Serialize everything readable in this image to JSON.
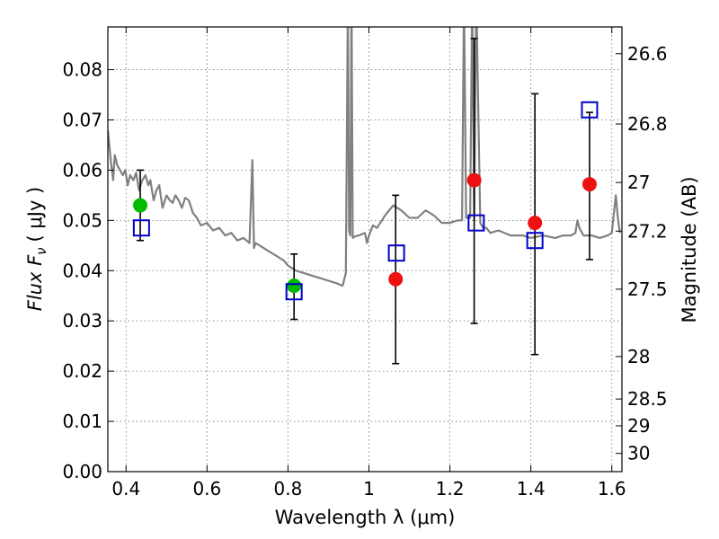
{
  "chart_data": {
    "type": "scatter",
    "xlabel": "Wavelength  λ (μm)",
    "ylabel": "Flux  F",
    "ylabel_sub": "ν",
    "ylabel_unit": "( μJy )",
    "ylabel_right": "Magnitude (AB)",
    "xlim": [
      0.355,
      1.625
    ],
    "ylim": [
      0.0,
      0.0885
    ],
    "grid": true,
    "x_ticks": [
      {
        "value": 0.4,
        "label": "0.4"
      },
      {
        "value": 0.6,
        "label": "0.6"
      },
      {
        "value": 0.8,
        "label": "0.8"
      },
      {
        "value": 1.0,
        "label": "1"
      },
      {
        "value": 1.2,
        "label": "1.2"
      },
      {
        "value": 1.4,
        "label": "1.4"
      },
      {
        "value": 1.6,
        "label": "1.6"
      }
    ],
    "y_ticks": [
      {
        "value": 0.0,
        "label": "0.00"
      },
      {
        "value": 0.01,
        "label": "0.01"
      },
      {
        "value": 0.02,
        "label": "0.02"
      },
      {
        "value": 0.03,
        "label": "0.03"
      },
      {
        "value": 0.04,
        "label": "0.04"
      },
      {
        "value": 0.05,
        "label": "0.05"
      },
      {
        "value": 0.06,
        "label": "0.06"
      },
      {
        "value": 0.07,
        "label": "0.07"
      },
      {
        "value": 0.08,
        "label": "0.08"
      }
    ],
    "right_ticks": [
      {
        "mag": 26.6,
        "label": "26.6"
      },
      {
        "mag": 26.8,
        "label": "26.8"
      },
      {
        "mag": 27.0,
        "label": "27"
      },
      {
        "mag": 27.2,
        "label": "27.2"
      },
      {
        "mag": 27.5,
        "label": "27.5"
      },
      {
        "mag": 28.0,
        "label": "28"
      },
      {
        "mag": 28.5,
        "label": "28.5"
      },
      {
        "mag": 29.0,
        "label": "29"
      },
      {
        "mag": 30.0,
        "label": "30"
      }
    ],
    "series": [
      {
        "kind": "line",
        "color": "#808080",
        "x": [
          0.355,
          0.362,
          0.368,
          0.372,
          0.378,
          0.385,
          0.392,
          0.398,
          0.404,
          0.41,
          0.418,
          0.425,
          0.432,
          0.44,
          0.448,
          0.455,
          0.46,
          0.468,
          0.475,
          0.482,
          0.49,
          0.5,
          0.508,
          0.515,
          0.522,
          0.53,
          0.538,
          0.546,
          0.555,
          0.565,
          0.575,
          0.585,
          0.6,
          0.615,
          0.63,
          0.645,
          0.66,
          0.675,
          0.69,
          0.705,
          0.712,
          0.716,
          0.72,
          0.73,
          0.75,
          0.77,
          0.79,
          0.8,
          0.82,
          0.84,
          0.86,
          0.88,
          0.9,
          0.92,
          0.935,
          0.943,
          0.948,
          0.951,
          0.954,
          0.957,
          0.96,
          0.965,
          0.975,
          0.99,
          0.995,
          1.0,
          1.01,
          1.02,
          1.04,
          1.06,
          1.08,
          1.1,
          1.12,
          1.14,
          1.16,
          1.18,
          1.2,
          1.22,
          1.23,
          1.235,
          1.24,
          1.25,
          1.255,
          1.26,
          1.265,
          1.275,
          1.282,
          1.29,
          1.3,
          1.32,
          1.35,
          1.38,
          1.4,
          1.43,
          1.46,
          1.48,
          1.5,
          1.51,
          1.515,
          1.52,
          1.53,
          1.55,
          1.57,
          1.59,
          1.6,
          1.61,
          1.615,
          1.62
        ],
        "y": [
          0.068,
          0.062,
          0.058,
          0.063,
          0.061,
          0.06,
          0.059,
          0.06,
          0.057,
          0.059,
          0.058,
          0.0595,
          0.056,
          0.058,
          0.059,
          0.057,
          0.058,
          0.054,
          0.056,
          0.057,
          0.0525,
          0.055,
          0.054,
          0.0535,
          0.055,
          0.054,
          0.0525,
          0.0545,
          0.054,
          0.0515,
          0.0505,
          0.049,
          0.0495,
          0.048,
          0.0485,
          0.047,
          0.0475,
          0.046,
          0.0465,
          0.0455,
          0.062,
          0.0445,
          0.0455,
          0.045,
          0.044,
          0.043,
          0.042,
          0.041,
          0.04,
          0.0395,
          0.039,
          0.0385,
          0.038,
          0.0375,
          0.037,
          0.0395,
          0.095,
          0.048,
          0.047,
          0.095,
          0.0465,
          0.0468,
          0.047,
          0.0475,
          0.0455,
          0.047,
          0.049,
          0.0485,
          0.051,
          0.053,
          0.052,
          0.0505,
          0.0505,
          0.052,
          0.051,
          0.0495,
          0.0495,
          0.05,
          0.05,
          0.095,
          0.0505,
          0.0505,
          0.095,
          0.05,
          0.095,
          0.0495,
          0.0485,
          0.0485,
          0.0475,
          0.048,
          0.047,
          0.047,
          0.0465,
          0.047,
          0.0465,
          0.047,
          0.047,
          0.0475,
          0.05,
          0.0485,
          0.047,
          0.047,
          0.0465,
          0.047,
          0.0475,
          0.055,
          0.0505,
          0.0475
        ]
      },
      {
        "kind": "points",
        "marker": "circle",
        "color": "#00bb00",
        "x": [
          0.435,
          0.815
        ],
        "y": [
          0.053,
          0.037
        ]
      },
      {
        "kind": "points",
        "marker": "circle",
        "color": "#ee1111",
        "x": [
          1.066,
          1.26,
          1.41,
          1.545
        ],
        "y": [
          0.0383,
          0.058,
          0.0495,
          0.0572
        ]
      },
      {
        "kind": "points",
        "marker": "square",
        "color": "#0000cc",
        "x": [
          0.438,
          0.815,
          1.068,
          1.265,
          1.41,
          1.545
        ],
        "y": [
          0.0485,
          0.0358,
          0.0435,
          0.0495,
          0.046,
          0.072
        ]
      },
      {
        "kind": "errorbars",
        "color": "#000000",
        "x": [
          0.435,
          0.815,
          1.066,
          1.26,
          1.41,
          1.545
        ],
        "y_low": [
          0.046,
          0.0303,
          0.0215,
          0.0295,
          0.0233,
          0.0422
        ],
        "y_high": [
          0.06,
          0.0433,
          0.055,
          0.0862,
          0.0752,
          0.0715
        ]
      }
    ]
  }
}
